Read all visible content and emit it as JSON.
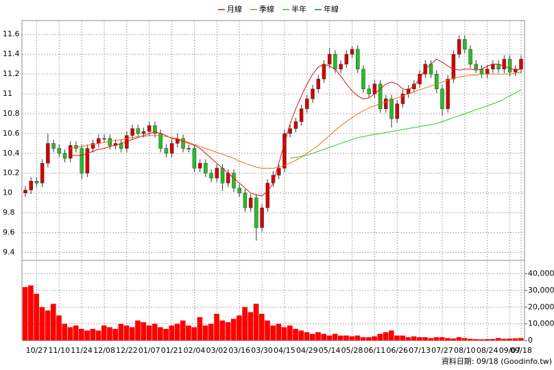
{
  "chart_data": {
    "type": "candlestick",
    "categories": [
      null,
      null,
      "10/27",
      null,
      null,
      null,
      "11/10",
      null,
      null,
      null,
      "11/24",
      null,
      null,
      null,
      "12/08",
      null,
      null,
      null,
      "12/22",
      null,
      null,
      null,
      "01/07",
      null,
      null,
      null,
      "01/21",
      null,
      null,
      null,
      "02/04",
      null,
      null,
      null,
      "03/02",
      null,
      null,
      null,
      "03/16",
      null,
      null,
      null,
      "03/30",
      null,
      null,
      null,
      "04/15",
      null,
      null,
      null,
      "04/29",
      null,
      null,
      null,
      "05/14",
      null,
      null,
      null,
      "05/28",
      null,
      null,
      null,
      "06/11",
      null,
      null,
      null,
      "06/26",
      null,
      null,
      null,
      "07/13",
      null,
      null,
      null,
      "07/27",
      null,
      null,
      null,
      "08/10",
      null,
      null,
      null,
      "08/24",
      null,
      null,
      null,
      "09/07",
      null,
      "09/18"
    ],
    "open": [
      10.0,
      10.03,
      10.12,
      10.1,
      10.3,
      10.5,
      10.45,
      10.4,
      10.35,
      10.48,
      10.45,
      10.2,
      10.45,
      10.5,
      10.55,
      10.55,
      10.48,
      10.5,
      10.45,
      10.58,
      10.65,
      10.6,
      10.62,
      10.68,
      10.6,
      10.45,
      10.4,
      10.5,
      10.55,
      10.45,
      10.45,
      10.25,
      10.3,
      10.2,
      10.15,
      10.25,
      10.1,
      10.2,
      10.05,
      10.0,
      9.85,
      9.95,
      9.65,
      9.85,
      10.1,
      10.18,
      10.25,
      10.6,
      10.65,
      10.72,
      10.85,
      10.95,
      11.05,
      11.15,
      11.3,
      11.4,
      11.25,
      11.3,
      11.4,
      11.45,
      11.25,
      11.05,
      11.0,
      11.1,
      10.85,
      10.95,
      10.75,
      10.9,
      11.0,
      11.05,
      11.1,
      11.2,
      11.3,
      11.2,
      11.05,
      10.85,
      11.15,
      11.4,
      11.55,
      11.45,
      11.3,
      11.25,
      11.2,
      11.25,
      11.3,
      11.25,
      11.35,
      11.22,
      11.25
    ],
    "high": [
      10.07,
      10.16,
      10.16,
      10.34,
      10.6,
      10.54,
      10.49,
      10.44,
      10.52,
      10.52,
      10.49,
      10.49,
      10.54,
      10.59,
      10.59,
      10.59,
      10.54,
      10.54,
      10.62,
      10.69,
      10.69,
      10.66,
      10.72,
      10.72,
      10.64,
      10.49,
      10.54,
      10.6,
      10.59,
      10.49,
      10.49,
      10.34,
      10.34,
      10.24,
      10.29,
      10.29,
      10.24,
      10.24,
      10.09,
      10.04,
      9.99,
      9.99,
      9.89,
      10.14,
      10.22,
      10.29,
      10.64,
      10.69,
      10.76,
      10.89,
      10.99,
      11.09,
      11.19,
      11.34,
      11.46,
      11.44,
      11.34,
      11.44,
      11.48,
      11.49,
      11.29,
      11.09,
      11.14,
      11.14,
      10.99,
      10.99,
      10.94,
      11.04,
      11.09,
      11.14,
      11.24,
      11.34,
      11.34,
      11.24,
      11.09,
      11.19,
      11.44,
      11.59,
      11.59,
      11.49,
      11.34,
      11.29,
      11.29,
      11.34,
      11.34,
      11.39,
      11.39,
      11.29,
      11.39
    ],
    "low": [
      9.96,
      9.99,
      10.06,
      10.06,
      10.26,
      10.41,
      10.36,
      10.31,
      10.31,
      10.41,
      10.14,
      10.16,
      10.41,
      10.46,
      10.51,
      10.44,
      10.44,
      10.41,
      10.41,
      10.54,
      10.56,
      10.56,
      10.58,
      10.56,
      10.41,
      10.36,
      10.36,
      10.46,
      10.41,
      10.41,
      10.21,
      10.21,
      10.16,
      10.11,
      10.11,
      10.02,
      10.06,
      10.01,
      9.96,
      9.81,
      9.81,
      9.52,
      9.61,
      9.81,
      10.06,
      10.14,
      10.21,
      10.56,
      10.61,
      10.68,
      10.81,
      10.91,
      11.01,
      11.11,
      11.26,
      11.21,
      11.21,
      11.26,
      11.36,
      11.21,
      11.01,
      10.96,
      10.96,
      10.81,
      10.81,
      10.66,
      10.71,
      10.86,
      10.96,
      11.01,
      11.06,
      11.16,
      11.16,
      11.01,
      10.78,
      10.81,
      11.11,
      11.36,
      11.41,
      11.26,
      11.21,
      11.16,
      11.16,
      11.21,
      11.21,
      11.21,
      11.18,
      11.18,
      11.21
    ],
    "close": [
      10.03,
      10.12,
      10.1,
      10.3,
      10.5,
      10.45,
      10.4,
      10.35,
      10.48,
      10.45,
      10.2,
      10.45,
      10.5,
      10.55,
      10.55,
      10.48,
      10.5,
      10.45,
      10.58,
      10.65,
      10.6,
      10.62,
      10.68,
      10.6,
      10.45,
      10.4,
      10.5,
      10.55,
      10.45,
      10.45,
      10.25,
      10.3,
      10.2,
      10.15,
      10.25,
      10.1,
      10.2,
      10.05,
      10.0,
      9.85,
      9.95,
      9.65,
      9.85,
      10.1,
      10.18,
      10.25,
      10.6,
      10.65,
      10.72,
      10.85,
      10.95,
      11.05,
      11.15,
      11.3,
      11.4,
      11.25,
      11.3,
      11.4,
      11.45,
      11.25,
      11.05,
      11.0,
      11.1,
      10.85,
      10.95,
      10.75,
      10.9,
      11.0,
      11.05,
      11.1,
      11.2,
      11.3,
      11.2,
      11.05,
      10.85,
      11.15,
      11.4,
      11.55,
      11.45,
      11.3,
      11.25,
      11.2,
      11.25,
      11.3,
      11.25,
      11.35,
      11.22,
      11.25,
      11.35
    ],
    "up_color": "#d40000",
    "down_color": "#22c022",
    "volume": [
      32000,
      33000,
      28000,
      20000,
      18000,
      22000,
      15000,
      10000,
      8000,
      9000,
      7000,
      6000,
      7000,
      6000,
      9000,
      8000,
      7000,
      10000,
      9000,
      8000,
      12000,
      11000,
      9000,
      10000,
      8000,
      7000,
      9000,
      10000,
      12000,
      9000,
      8000,
      14000,
      9000,
      10000,
      16000,
      12000,
      11000,
      13000,
      15000,
      20000,
      17000,
      22000,
      16000,
      12000,
      9000,
      10000,
      8000,
      9000,
      7000,
      6000,
      5000,
      4000,
      5000,
      4000,
      3000,
      4000,
      3000,
      3000,
      2500,
      3000,
      2000,
      2000,
      2500,
      4000,
      5000,
      6000,
      3000,
      3000,
      2000,
      2500,
      2000,
      2000,
      1500,
      2000,
      2000,
      1500,
      1200,
      2000,
      1500,
      1000,
      800,
      700,
      800,
      900,
      1500,
      1000,
      1200,
      1300,
      1500
    ],
    "volume_color": "#ff0000",
    "series": [
      {
        "name": "月線",
        "color": "#e01010",
        "values": [
          null,
          null,
          null,
          null,
          null,
          null,
          null,
          null,
          10.38,
          10.38,
          10.38,
          10.4,
          10.42,
          10.44,
          10.45,
          10.47,
          10.48,
          10.5,
          10.52,
          10.54,
          10.56,
          10.58,
          10.6,
          10.62,
          10.6,
          10.58,
          10.55,
          10.54,
          10.52,
          10.5,
          10.48,
          10.45,
          10.4,
          10.35,
          10.3,
          10.25,
          10.2,
          10.15,
          10.1,
          10.05,
          10.0,
          9.98,
          9.97,
          10.02,
          10.1,
          10.3,
          10.5,
          10.7,
          10.85,
          10.98,
          11.1,
          11.2,
          11.27,
          11.3,
          11.28,
          11.25,
          11.18,
          11.1,
          11.03,
          10.98,
          10.95,
          10.96,
          11.0,
          11.05,
          11.1,
          11.12,
          11.1,
          11.05,
          11.04,
          11.08,
          11.15,
          11.25,
          11.3,
          11.35,
          11.32,
          11.28,
          11.25,
          11.24,
          11.25,
          11.25,
          11.24,
          11.25,
          11.28,
          11.3,
          11.3,
          11.28,
          11.26,
          11.24,
          11.25
        ]
      },
      {
        "name": "季線",
        "color": "#e87010",
        "values": [
          null,
          null,
          null,
          null,
          null,
          null,
          null,
          null,
          10.45,
          10.46,
          10.47,
          10.48,
          10.49,
          10.5,
          10.51,
          10.52,
          10.53,
          10.54,
          10.55,
          10.56,
          10.57,
          10.57,
          10.58,
          10.58,
          10.58,
          10.57,
          10.56,
          10.55,
          10.53,
          10.51,
          10.49,
          10.47,
          10.45,
          10.43,
          10.41,
          10.39,
          10.37,
          10.35,
          10.32,
          10.3,
          10.28,
          10.26,
          10.25,
          10.25,
          10.25,
          10.26,
          10.28,
          10.3,
          10.33,
          10.36,
          10.4,
          10.44,
          10.48,
          10.53,
          10.58,
          10.63,
          10.68,
          10.72,
          10.76,
          10.8,
          10.83,
          10.86,
          10.88,
          10.9,
          10.92,
          10.94,
          10.96,
          10.98,
          11.0,
          11.02,
          11.04,
          11.06,
          11.08,
          11.1,
          11.12,
          11.14,
          11.16,
          11.17,
          11.18,
          11.19,
          11.19,
          11.2,
          11.2,
          11.2,
          11.2,
          11.2,
          11.2,
          11.21,
          11.22
        ]
      },
      {
        "name": "半年",
        "color": "#20d020",
        "values": [
          null,
          null,
          null,
          null,
          null,
          null,
          null,
          null,
          null,
          null,
          null,
          null,
          null,
          null,
          null,
          null,
          null,
          null,
          null,
          null,
          null,
          null,
          null,
          null,
          null,
          null,
          null,
          null,
          null,
          null,
          null,
          null,
          null,
          null,
          null,
          null,
          null,
          null,
          null,
          null,
          null,
          null,
          null,
          null,
          null,
          null,
          null,
          10.35,
          10.36,
          10.37,
          10.38,
          10.4,
          10.42,
          10.44,
          10.46,
          10.48,
          10.5,
          10.52,
          10.54,
          10.56,
          10.57,
          10.58,
          10.59,
          10.6,
          10.61,
          10.62,
          10.63,
          10.64,
          10.65,
          10.66,
          10.67,
          10.68,
          10.69,
          10.7,
          10.72,
          10.74,
          10.76,
          10.78,
          10.8,
          10.82,
          10.84,
          10.86,
          10.88,
          10.9,
          10.92,
          10.95,
          10.98,
          11.01,
          11.04
        ]
      },
      {
        "name": "年線",
        "color": "#1060e0",
        "values": [
          null,
          null,
          null,
          null,
          null,
          null,
          null,
          null,
          null,
          null,
          null,
          null,
          null,
          null,
          null,
          null,
          null,
          null,
          null,
          null,
          null,
          null,
          null,
          null,
          null,
          null,
          null,
          null,
          null,
          null,
          null,
          null,
          null,
          null,
          null,
          null,
          null,
          null,
          null,
          null,
          null,
          null,
          null,
          null,
          null,
          null,
          null,
          null,
          null,
          null,
          null,
          null,
          null,
          null,
          null,
          null,
          null,
          null,
          null,
          null,
          null,
          null,
          null,
          null,
          null,
          null,
          null,
          null,
          null,
          null,
          null,
          null,
          null,
          null,
          null,
          null,
          null,
          null,
          null,
          null,
          null,
          null,
          null,
          null,
          null,
          null,
          null,
          null,
          null
        ]
      }
    ],
    "ylim": [
      9.32,
      11.74
    ],
    "yticks": [
      9.4,
      9.6,
      9.8,
      10,
      10.2,
      10.4,
      10.6,
      10.8,
      11,
      11.2,
      11.4,
      11.6
    ],
    "y2lim": [
      0,
      48000
    ],
    "y2ticks": [
      0,
      {
        "value": 10000,
        "label": "10,000"
      },
      {
        "value": 20000,
        "label": "20,000"
      },
      {
        "value": 30000,
        "label": "30,000"
      },
      {
        "value": 40000,
        "label": "40,000"
      }
    ],
    "grid": true,
    "footer": "資料日期: 09/18  (Goodinfo.tw)"
  }
}
